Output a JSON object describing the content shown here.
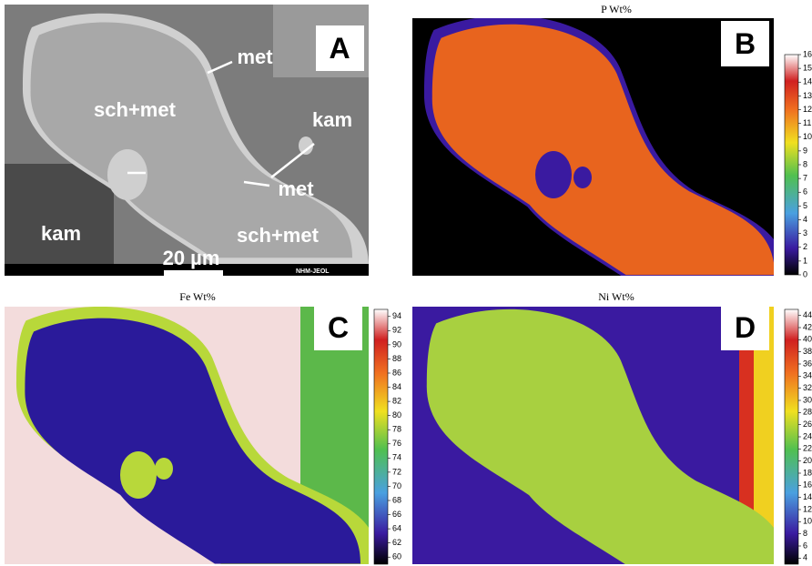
{
  "panel_a": {
    "label": "A",
    "annotations": [
      "met",
      "sch+met",
      "kam",
      "met",
      "kam",
      "sch+met"
    ],
    "scale_bar": "20 µm",
    "instrument": "NHM-JEOL"
  },
  "maps": [
    {
      "label": "B",
      "title": "P Wt%",
      "colorbar": {
        "lim": [
          0,
          16
        ],
        "ticks": [
          0,
          1,
          2,
          3,
          4,
          5,
          6,
          7,
          8,
          9,
          10,
          11,
          12,
          13,
          14,
          15,
          16
        ]
      }
    },
    {
      "label": "C",
      "title": "Fe Wt%",
      "colorbar": {
        "lim": [
          59,
          95
        ],
        "ticks": [
          60,
          62,
          64,
          66,
          68,
          70,
          72,
          74,
          76,
          78,
          80,
          82,
          84,
          86,
          88,
          90,
          92,
          94
        ]
      }
    },
    {
      "label": "D",
      "title": "Ni Wt%",
      "colorbar": {
        "lim": [
          3,
          45
        ],
        "ticks": [
          4,
          6,
          8,
          10,
          12,
          14,
          16,
          18,
          20,
          22,
          24,
          26,
          28,
          30,
          32,
          34,
          36,
          38,
          40,
          42,
          44
        ]
      }
    }
  ]
}
